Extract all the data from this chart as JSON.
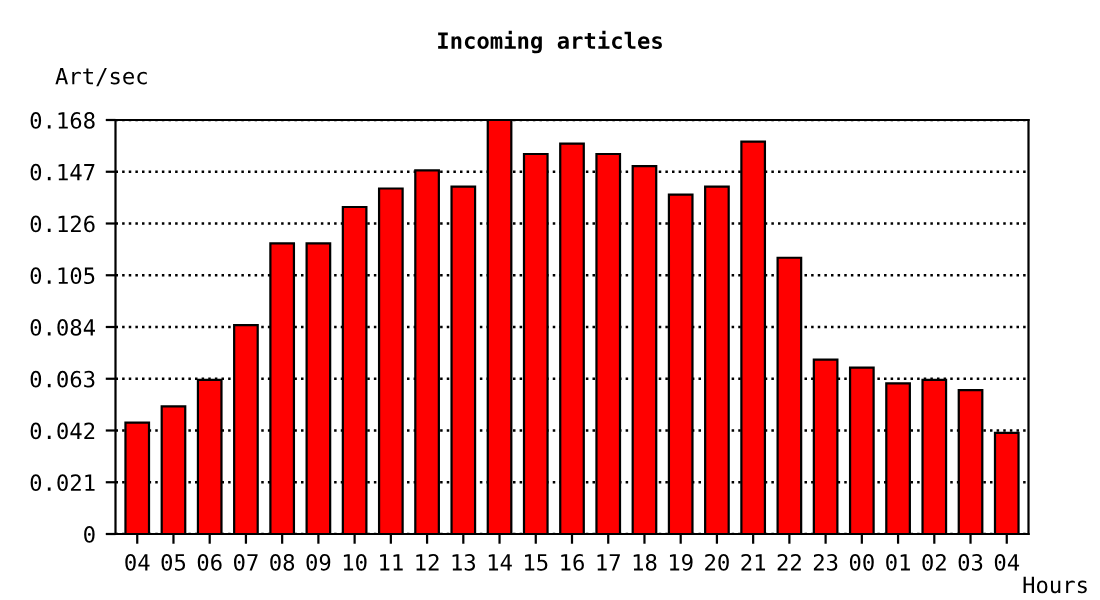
{
  "chart_data": {
    "type": "bar",
    "title": "Incoming articles",
    "ylabel": "Art/sec",
    "xlabel": "Hours",
    "categories": [
      "04",
      "05",
      "06",
      "07",
      "08",
      "09",
      "10",
      "11",
      "12",
      "13",
      "14",
      "15",
      "16",
      "17",
      "18",
      "19",
      "20",
      "21",
      "22",
      "23",
      "00",
      "01",
      "02",
      "03",
      "04"
    ],
    "values": [
      0.0452,
      0.0518,
      0.0625,
      0.0848,
      0.1179,
      0.1179,
      0.1327,
      0.1402,
      0.1476,
      0.141,
      0.168,
      0.1542,
      0.1584,
      0.1542,
      0.1493,
      0.1377,
      0.141,
      0.1592,
      0.1121,
      0.0708,
      0.0675,
      0.0611,
      0.0625,
      0.0584,
      0.041
    ],
    "color": "#ff0000",
    "ylim": [
      0,
      0.168
    ],
    "yticks": [
      0,
      0.021,
      0.042,
      0.063,
      0.084,
      0.105,
      0.126,
      0.147,
      0.168
    ],
    "grid": "y",
    "line_style": "dotted"
  }
}
